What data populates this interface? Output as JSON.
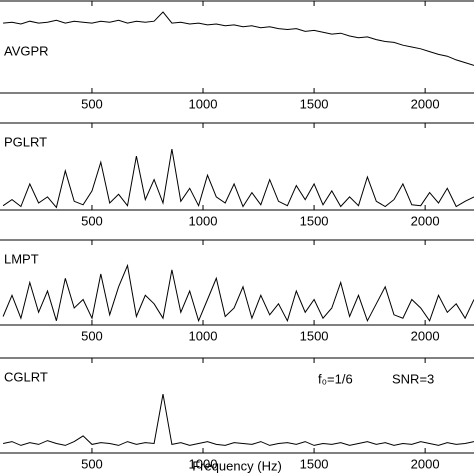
{
  "chart_data": [
    {
      "type": "line",
      "label": "AVGPR",
      "x": [
        100,
        140,
        180,
        220,
        260,
        300,
        340,
        380,
        420,
        460,
        500,
        540,
        580,
        620,
        660,
        700,
        740,
        780,
        820,
        860,
        900,
        940,
        980,
        1020,
        1060,
        1100,
        1140,
        1180,
        1220,
        1260,
        1300,
        1340,
        1380,
        1420,
        1460,
        1500,
        1540,
        1580,
        1620,
        1660,
        1700,
        1740,
        1780,
        1820,
        1860,
        1900,
        1940,
        1980,
        2020,
        2060,
        2100,
        2140,
        2180,
        2220
      ],
      "values": [
        0.76,
        0.77,
        0.75,
        0.78,
        0.76,
        0.77,
        0.79,
        0.76,
        0.78,
        0.77,
        0.76,
        0.78,
        0.77,
        0.79,
        0.76,
        0.78,
        0.77,
        0.78,
        0.88,
        0.76,
        0.77,
        0.75,
        0.76,
        0.74,
        0.75,
        0.73,
        0.74,
        0.72,
        0.73,
        0.71,
        0.72,
        0.7,
        0.69,
        0.7,
        0.67,
        0.68,
        0.66,
        0.64,
        0.65,
        0.62,
        0.6,
        0.61,
        0.58,
        0.56,
        0.55,
        0.52,
        0.5,
        0.48,
        0.45,
        0.42,
        0.4,
        0.36,
        0.33,
        0.3
      ],
      "color": "#000000",
      "xlim": [
        86,
        2220
      ],
      "ylim": [
        0,
        1
      ],
      "xticks": [
        500,
        1000,
        1500,
        2000
      ]
    },
    {
      "type": "line",
      "label": "PGLRT",
      "x": [
        100,
        140,
        180,
        220,
        260,
        300,
        340,
        380,
        420,
        460,
        500,
        540,
        580,
        620,
        660,
        700,
        740,
        780,
        820,
        860,
        900,
        940,
        980,
        1020,
        1060,
        1100,
        1140,
        1180,
        1220,
        1260,
        1300,
        1340,
        1380,
        1420,
        1460,
        1500,
        1540,
        1580,
        1620,
        1660,
        1700,
        1740,
        1780,
        1820,
        1860,
        1900,
        1940,
        1980,
        2020,
        2060,
        2100,
        2140,
        2180,
        2220
      ],
      "values": [
        0.05,
        0.12,
        0.04,
        0.3,
        0.08,
        0.15,
        0.03,
        0.45,
        0.1,
        0.06,
        0.22,
        0.55,
        0.08,
        0.18,
        0.05,
        0.62,
        0.12,
        0.35,
        0.08,
        0.7,
        0.1,
        0.25,
        0.05,
        0.4,
        0.15,
        0.08,
        0.3,
        0.04,
        0.2,
        0.06,
        0.35,
        0.1,
        0.05,
        0.28,
        0.12,
        0.3,
        0.06,
        0.22,
        0.04,
        0.15,
        0.05,
        0.38,
        0.1,
        0.04,
        0.12,
        0.3,
        0.06,
        0.05,
        0.2,
        0.08,
        0.25,
        0.04,
        0.1,
        0.15
      ],
      "color": "#000000",
      "xlim": [
        86,
        2220
      ],
      "ylim": [
        0,
        1
      ],
      "xticks": [
        500,
        1000,
        1500,
        2000
      ]
    },
    {
      "type": "line",
      "label": "LMPT",
      "x": [
        100,
        140,
        180,
        220,
        260,
        300,
        340,
        380,
        420,
        460,
        500,
        540,
        580,
        620,
        660,
        700,
        740,
        780,
        820,
        860,
        900,
        940,
        980,
        1020,
        1060,
        1100,
        1140,
        1180,
        1220,
        1260,
        1300,
        1340,
        1380,
        1420,
        1460,
        1500,
        1540,
        1580,
        1620,
        1660,
        1700,
        1740,
        1780,
        1820,
        1860,
        1900,
        1940,
        1980,
        2020,
        2060,
        2100,
        2140,
        2180,
        2220
      ],
      "values": [
        0.1,
        0.35,
        0.08,
        0.5,
        0.15,
        0.4,
        0.05,
        0.55,
        0.2,
        0.3,
        0.08,
        0.6,
        0.12,
        0.45,
        0.7,
        0.1,
        0.35,
        0.25,
        0.08,
        0.65,
        0.15,
        0.4,
        0.05,
        0.3,
        0.55,
        0.1,
        0.2,
        0.45,
        0.08,
        0.35,
        0.12,
        0.25,
        0.05,
        0.4,
        0.15,
        0.3,
        0.08,
        0.2,
        0.5,
        0.1,
        0.35,
        0.05,
        0.25,
        0.45,
        0.12,
        0.08,
        0.3,
        0.2,
        0.05,
        0.35,
        0.15,
        0.25,
        0.08,
        0.3
      ],
      "color": "#000000",
      "xlim": [
        86,
        2220
      ],
      "ylim": [
        0,
        1
      ],
      "xticks": [
        500,
        1000,
        1500,
        2000
      ]
    },
    {
      "type": "line",
      "label": "CGLRT",
      "xlabel": "Frequency (Hz)",
      "annotations": [
        "f₀=1/6",
        "SNR=3"
      ],
      "x": [
        100,
        140,
        180,
        220,
        260,
        300,
        340,
        380,
        420,
        460,
        500,
        540,
        580,
        620,
        660,
        700,
        740,
        780,
        820,
        860,
        900,
        940,
        980,
        1020,
        1060,
        1100,
        1140,
        1180,
        1220,
        1260,
        1300,
        1340,
        1380,
        1420,
        1460,
        1500,
        1540,
        1580,
        1620,
        1660,
        1700,
        1740,
        1780,
        1820,
        1860,
        1900,
        1940,
        1980,
        2020,
        2060,
        2100,
        2140,
        2180,
        2220
      ],
      "values": [
        0.1,
        0.12,
        0.08,
        0.11,
        0.09,
        0.13,
        0.1,
        0.08,
        0.12,
        0.18,
        0.09,
        0.11,
        0.1,
        0.08,
        0.12,
        0.09,
        0.11,
        0.1,
        0.62,
        0.09,
        0.11,
        0.08,
        0.1,
        0.12,
        0.09,
        0.08,
        0.11,
        0.1,
        0.09,
        0.12,
        0.08,
        0.1,
        0.11,
        0.09,
        0.12,
        0.08,
        0.1,
        0.09,
        0.11,
        0.08,
        0.1,
        0.12,
        0.09,
        0.11,
        0.08,
        0.1,
        0.09,
        0.12,
        0.1,
        0.08,
        0.11,
        0.09,
        0.1,
        0.12
      ],
      "color": "#000000",
      "xlim": [
        86,
        2220
      ],
      "ylim": [
        0,
        1
      ],
      "xticks": [
        500,
        1000,
        1500,
        2000
      ]
    }
  ]
}
